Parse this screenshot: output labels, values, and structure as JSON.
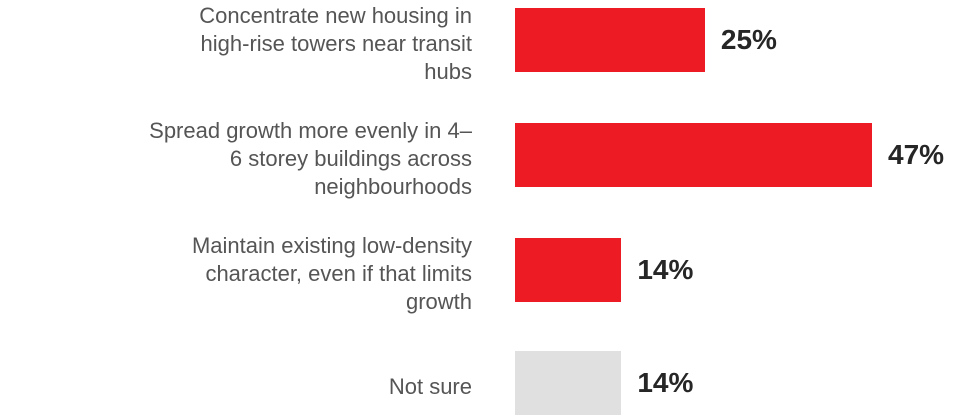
{
  "chart_data": {
    "type": "bar",
    "orientation": "horizontal",
    "categories": [
      "Concentrate new housing in high-rise towers near transit hubs",
      "Spread growth more evenly in 4–6 storey buildings across neighbourhoods",
      "Maintain existing low-density character, even if that limits growth",
      "Not sure"
    ],
    "label_lines": [
      [
        "Concentrate new housing in",
        "high-rise towers near transit",
        "hubs"
      ],
      [
        "Spread growth more evenly in 4–",
        "6 storey buildings across",
        "neighbourhoods"
      ],
      [
        "Maintain existing low-density",
        "character, even if that limits",
        "growth"
      ],
      [
        "Not sure"
      ]
    ],
    "values": [
      25,
      47,
      14,
      14
    ],
    "value_labels": [
      "25%",
      "47%",
      "14%",
      "14%"
    ],
    "bar_colors": [
      "#ED1C24",
      "#ED1C24",
      "#ED1C24",
      "#E0E0E0"
    ],
    "title": "",
    "xlabel": "",
    "ylabel": "",
    "grid": false,
    "legend": "none"
  }
}
